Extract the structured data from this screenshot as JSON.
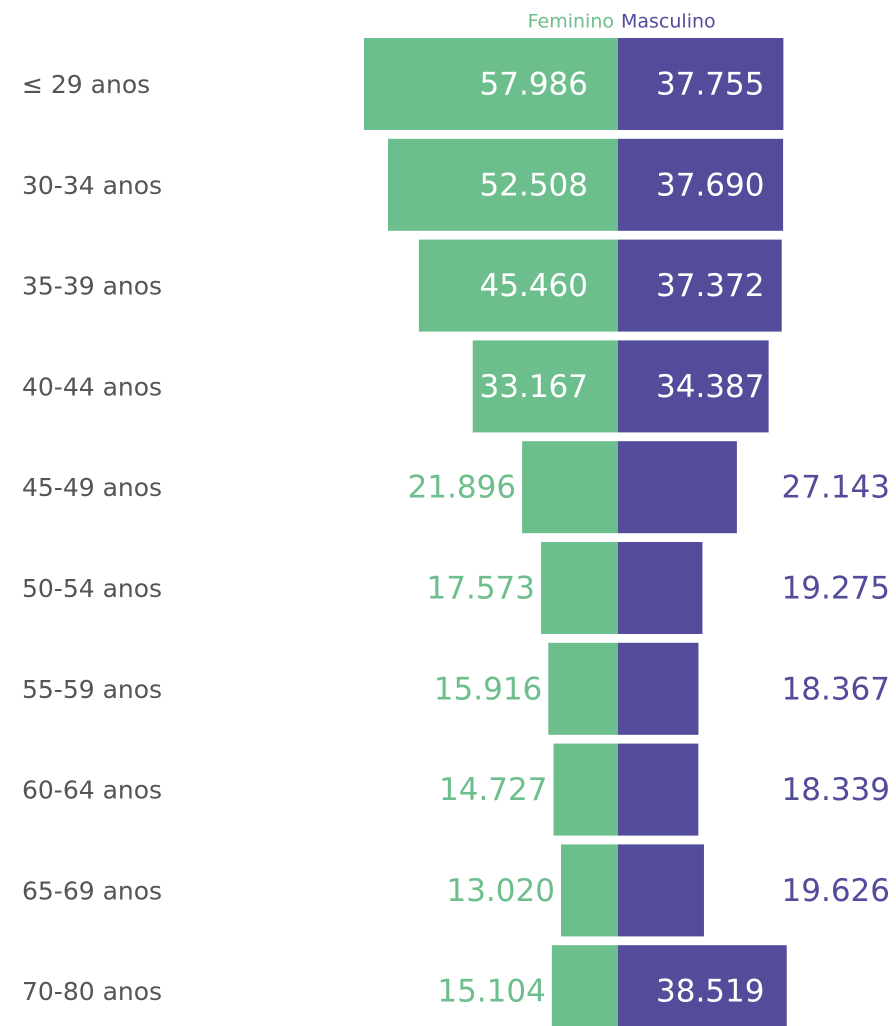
{
  "chart_data": {
    "type": "pyramid",
    "categories": [
      "≤ 29 anos",
      "30-34 anos",
      "35-39 anos",
      "40-44 anos",
      "45-49 anos",
      "50-54 anos",
      "55-59 anos",
      "60-64 anos",
      "65-69 anos",
      "70-80 anos"
    ],
    "series": [
      {
        "name": "Feminino",
        "color": "#6dbe8d",
        "values": [
          57986,
          52508,
          45460,
          33167,
          21896,
          17573,
          15916,
          14727,
          13020,
          15104
        ],
        "value_labels": [
          "57.986",
          "52.508",
          "45.460",
          "33.167",
          "21.896",
          "17.573",
          "15.916",
          "14.727",
          "13.020",
          "15.104"
        ]
      },
      {
        "name": "Masculino",
        "color": "#524c9b",
        "values": [
          37755,
          37690,
          37372,
          34387,
          27143,
          19275,
          18367,
          18339,
          19626,
          38519
        ],
        "value_labels": [
          "37.755",
          "37.690",
          "37.372",
          "34.387",
          "27.143",
          "19.275",
          "18.367",
          "18.339",
          "19.626",
          "38.519"
        ]
      }
    ]
  }
}
